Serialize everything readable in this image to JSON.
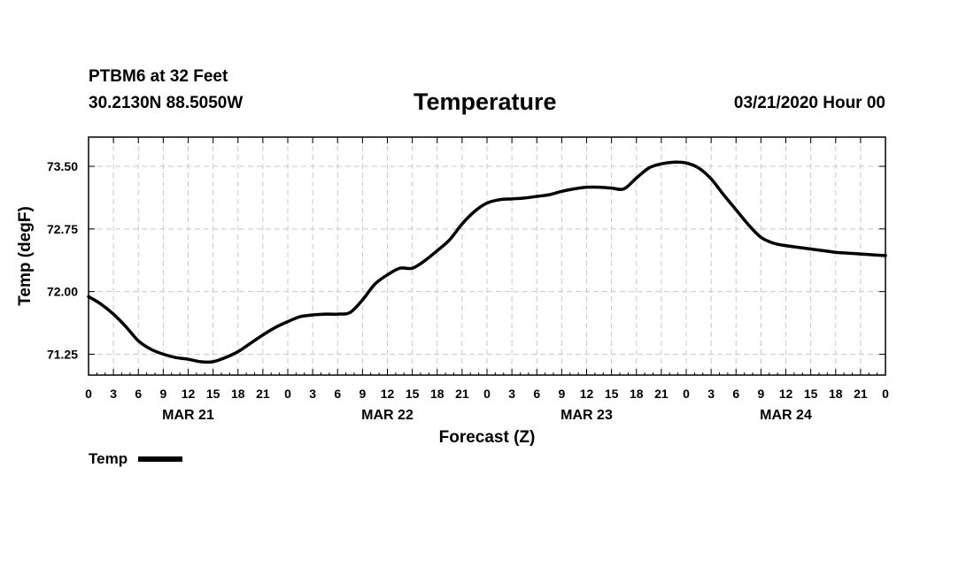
{
  "header": {
    "station": "PTBM6 at 32 Feet",
    "coords": "30.2130N 88.5050W",
    "title": "Temperature",
    "run_time": "03/21/2020 Hour 00"
  },
  "chart_data": {
    "type": "line",
    "title": "Temperature",
    "xlabel": "Forecast (Z)",
    "ylabel": "Temp (degF)",
    "x_unit": "forecast hour",
    "xlim": [
      0,
      96
    ],
    "ylim": [
      71.0,
      73.85
    ],
    "yticks": [
      71.25,
      72.0,
      72.75,
      73.5
    ],
    "ytick_labels": [
      "71.25",
      "72.00",
      "72.75",
      "73.50"
    ],
    "xticks": [
      0,
      3,
      6,
      9,
      12,
      15,
      18,
      21,
      24,
      27,
      30,
      33,
      36,
      39,
      42,
      45,
      48,
      51,
      54,
      57,
      60,
      63,
      66,
      69,
      72,
      75,
      78,
      81,
      84,
      87,
      90,
      93,
      96
    ],
    "xtick_labels": [
      "0",
      "3",
      "6",
      "9",
      "12",
      "15",
      "18",
      "21",
      "0",
      "3",
      "6",
      "9",
      "12",
      "15",
      "18",
      "21",
      "0",
      "3",
      "6",
      "9",
      "12",
      "15",
      "18",
      "21",
      "0",
      "3",
      "6",
      "9",
      "12",
      "15",
      "18",
      "21",
      "0"
    ],
    "day_labels": [
      {
        "hour": 12,
        "label": "MAR 21"
      },
      {
        "hour": 36,
        "label": "MAR 22"
      },
      {
        "hour": 60,
        "label": "MAR 23"
      },
      {
        "hour": 84,
        "label": "MAR 24"
      }
    ],
    "grid": true,
    "series": [
      {
        "name": "Temp",
        "color": "#000000",
        "x": [
          0,
          1.5,
          3,
          4.5,
          6,
          7.5,
          9,
          10.5,
          12,
          13.5,
          15,
          16.5,
          18,
          19.5,
          21,
          22.5,
          24,
          25.5,
          27,
          28.5,
          30,
          31.5,
          33,
          34.5,
          36,
          37.5,
          39,
          40.5,
          42,
          43.5,
          45,
          46.5,
          48,
          49.5,
          51,
          52.5,
          54,
          55.5,
          57,
          58.5,
          60,
          61.5,
          63,
          64.5,
          66,
          67.5,
          69,
          70.5,
          72,
          73.5,
          75,
          76.5,
          78,
          79.5,
          81,
          82.5,
          84,
          85.5,
          87,
          88.5,
          90,
          91.5,
          93,
          94.5,
          96
        ],
        "values": [
          71.94,
          71.85,
          71.73,
          71.58,
          71.41,
          71.31,
          71.25,
          71.21,
          71.19,
          71.16,
          71.16,
          71.21,
          71.28,
          71.38,
          71.48,
          71.57,
          71.64,
          71.7,
          71.72,
          71.73,
          71.73,
          71.75,
          71.9,
          72.09,
          72.2,
          72.28,
          72.28,
          72.37,
          72.49,
          72.62,
          72.81,
          72.96,
          73.06,
          73.1,
          73.11,
          73.12,
          73.14,
          73.16,
          73.2,
          73.23,
          73.25,
          73.25,
          73.24,
          73.23,
          73.36,
          73.48,
          73.53,
          73.55,
          73.54,
          73.48,
          73.35,
          73.16,
          72.98,
          72.8,
          72.65,
          72.58,
          72.55,
          72.53,
          72.51,
          72.49,
          72.47,
          72.46,
          72.45,
          72.44,
          72.43
        ]
      }
    ]
  },
  "legend": {
    "label": "Temp"
  }
}
